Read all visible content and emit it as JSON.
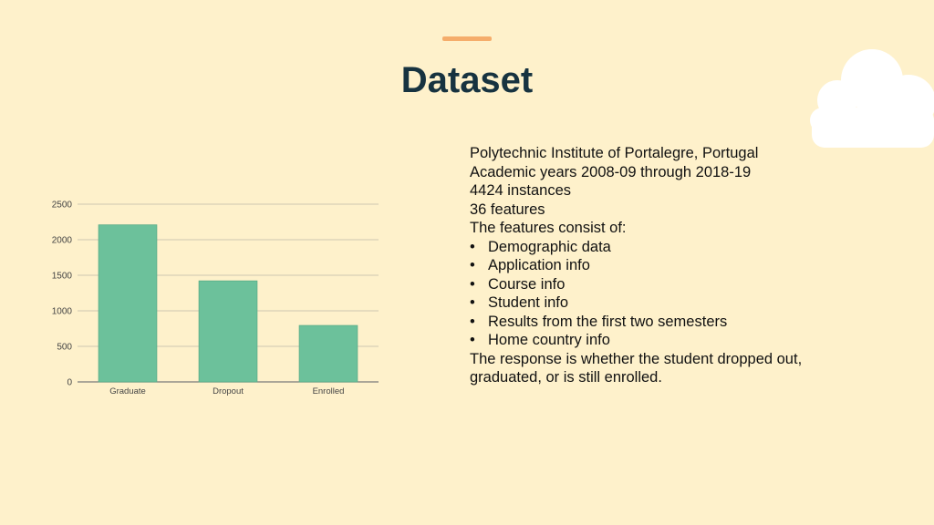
{
  "slide": {
    "title": "Dataset",
    "accent_color": "#f5ad6b",
    "background_color": "#fef1cb"
  },
  "description": {
    "lines": [
      "Polytechnic Institute of Portalegre, Portugal",
      "Academic years 2008-09 through 2018-19",
      "4424 instances",
      "36 features",
      "The features consist of:"
    ],
    "bullets": [
      "Demographic data",
      "Application info",
      "Course info",
      "Student info",
      "Results from the first two semesters",
      "Home country info"
    ],
    "bullet_glyph": "•",
    "closing": "The response is whether the student dropped out, graduated, or is still enrolled."
  },
  "chart_data": {
    "type": "bar",
    "categories": [
      "Graduate",
      "Dropout",
      "Enrolled"
    ],
    "values": [
      2209,
      1421,
      794
    ],
    "ylim": [
      0,
      2500
    ],
    "yticks": [
      0,
      500,
      1000,
      1500,
      2000,
      2500
    ],
    "grid": true,
    "bar_color": "#6cc19b",
    "title": "",
    "xlabel": "",
    "ylabel": ""
  }
}
